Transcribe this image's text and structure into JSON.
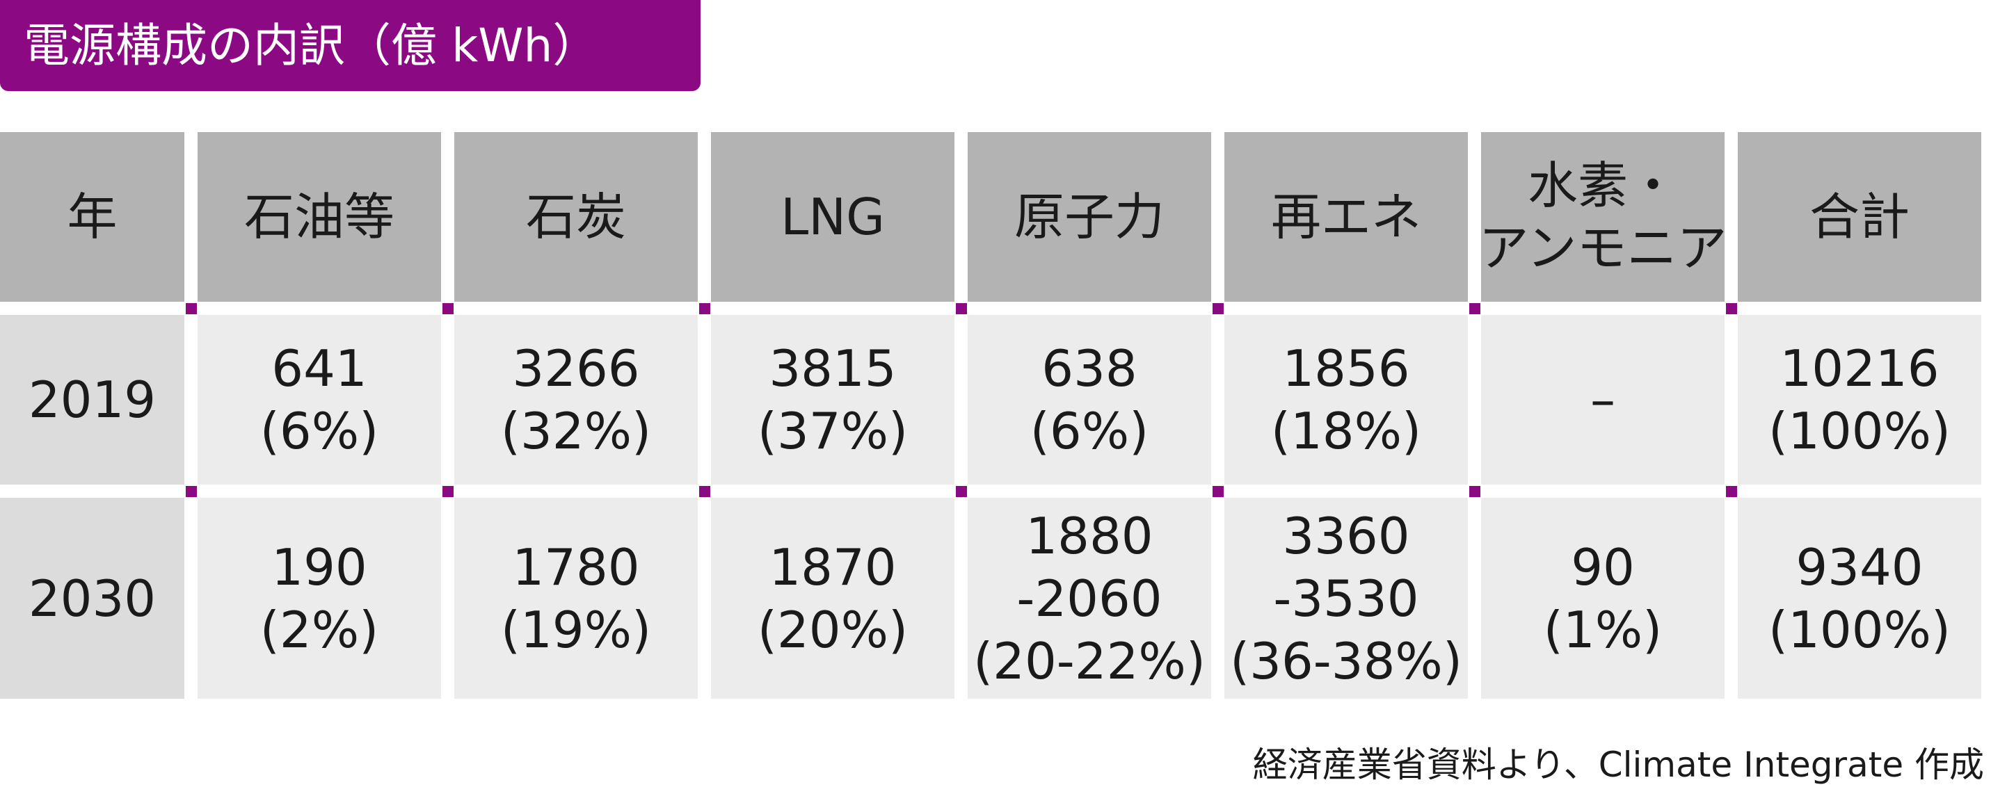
{
  "title": "電源構成の内訳（億 kWh）",
  "table": {
    "header": [
      [
        "年"
      ],
      [
        "石油等"
      ],
      [
        "石炭"
      ],
      [
        "LNG"
      ],
      [
        "原子力"
      ],
      [
        "再エネ"
      ],
      [
        "水素・",
        "アンモニア"
      ],
      [
        "合計"
      ]
    ],
    "rows": [
      [
        [
          "2019"
        ],
        [
          "641",
          "(6%)"
        ],
        [
          "3266",
          "(32%)"
        ],
        [
          "3815",
          "(37%)"
        ],
        [
          "638",
          "(6%)"
        ],
        [
          "1856",
          "(18%)"
        ],
        [
          "–"
        ],
        [
          "10216",
          "(100%)"
        ]
      ],
      [
        [
          "2030"
        ],
        [
          "190",
          "(2%)"
        ],
        [
          "1780",
          "(19%)"
        ],
        [
          "1870",
          "(20%)"
        ],
        [
          "1880",
          "-2060",
          "(20-22%)"
        ],
        [
          "3360",
          "-3530",
          "(36-38%)"
        ],
        [
          "90",
          "(1%)"
        ],
        [
          "9340",
          "(100%)"
        ]
      ]
    ]
  },
  "source": "経済産業省資料より、Climate Integrate 作成"
}
